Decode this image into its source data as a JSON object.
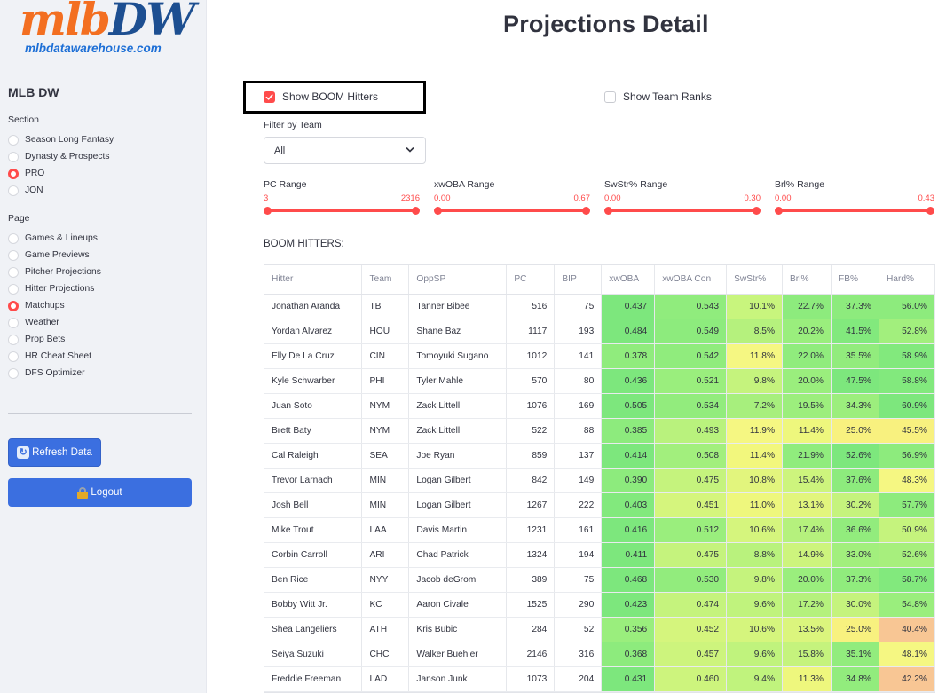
{
  "sidebar": {
    "logo_main_a": "mlb",
    "logo_main_b": "DW",
    "logo_sub": "mlbdatawarehouse.com",
    "title": "MLB DW",
    "section_label": "Section",
    "sections": [
      {
        "label": "Season Long Fantasy",
        "selected": false
      },
      {
        "label": "Dynasty & Prospects",
        "selected": false
      },
      {
        "label": "PRO",
        "selected": true
      },
      {
        "label": "JON",
        "selected": false
      }
    ],
    "page_label": "Page",
    "pages": [
      {
        "label": "Games & Lineups",
        "selected": false
      },
      {
        "label": "Game Previews",
        "selected": false
      },
      {
        "label": "Pitcher Projections",
        "selected": false
      },
      {
        "label": "Hitter Projections",
        "selected": false
      },
      {
        "label": "Matchups",
        "selected": true
      },
      {
        "label": "Weather",
        "selected": false
      },
      {
        "label": "Prop Bets",
        "selected": false
      },
      {
        "label": "HR Cheat Sheet",
        "selected": false
      },
      {
        "label": "DFS Optimizer",
        "selected": false
      }
    ],
    "refresh_label": "Refresh Data",
    "logout_label": "Logout"
  },
  "main": {
    "title": "Projections Detail",
    "show_boom_label": "Show BOOM Hitters",
    "show_boom_checked": true,
    "show_team_ranks_label": "Show Team Ranks",
    "show_team_ranks_checked": false,
    "filter_label": "Filter by Team",
    "filter_value": "All",
    "sliders": [
      {
        "label": "PC Range",
        "min": "3",
        "max": "2316"
      },
      {
        "label": "xwOBA Range",
        "min": "0.00",
        "max": "0.67"
      },
      {
        "label": "SwStr% Range",
        "min": "0.00",
        "max": "0.30"
      },
      {
        "label": "Brl% Range",
        "min": "0.00",
        "max": "0.43"
      }
    ],
    "table_title": "BOOM HITTERS:"
  },
  "table": {
    "columns": [
      "Hitter",
      "Team",
      "OppSP",
      "PC",
      "BIP",
      "xwOBA",
      "xwOBA Con",
      "SwStr%",
      "Brl%",
      "FB%",
      "Hard%"
    ],
    "rows": [
      {
        "cells": [
          "Jonathan Aranda",
          "TB",
          "Tanner Bibee",
          "516",
          "75",
          "0.437",
          "0.543",
          "10.1%",
          "22.7%",
          "37.3%",
          "56.0%"
        ],
        "colors": [
          "#7de77d",
          "#90ec7d",
          "#c8f57d",
          "#8deb7d",
          "#8deb7d",
          "#8deb7d"
        ]
      },
      {
        "cells": [
          "Yordan Alvarez",
          "HOU",
          "Shane Baz",
          "1117",
          "193",
          "0.484",
          "0.549",
          "8.5%",
          "20.2%",
          "41.5%",
          "52.8%"
        ],
        "colors": [
          "#7de77d",
          "#8deb7d",
          "#b5f17d",
          "#9aee7d",
          "#82e97d",
          "#a2ef7d"
        ]
      },
      {
        "cells": [
          "Elly De La Cruz",
          "CIN",
          "Tomoyuki Sugano",
          "1012",
          "141",
          "0.378",
          "0.542",
          "11.8%",
          "22.0%",
          "35.5%",
          "58.9%"
        ],
        "colors": [
          "#90ec7d",
          "#90ec7d",
          "#f5f782",
          "#90ec7d",
          "#92ec7d",
          "#82e97d"
        ]
      },
      {
        "cells": [
          "Kyle Schwarber",
          "PHI",
          "Tyler Mahle",
          "570",
          "80",
          "0.436",
          "0.521",
          "9.8%",
          "20.0%",
          "47.5%",
          "58.8%"
        ],
        "colors": [
          "#7de77d",
          "#9aee7d",
          "#c5f37d",
          "#9aee7d",
          "#7de77d",
          "#82e97d"
        ]
      },
      {
        "cells": [
          "Juan Soto",
          "NYM",
          "Zack Littell",
          "1076",
          "169",
          "0.505",
          "0.534",
          "7.2%",
          "19.5%",
          "34.3%",
          "60.9%"
        ],
        "colors": [
          "#7de77d",
          "#92ec7d",
          "#a7ef7d",
          "#9cee7d",
          "#9cee7d",
          "#7de77d"
        ]
      },
      {
        "cells": [
          "Brett Baty",
          "NYM",
          "Zack Littell",
          "522",
          "88",
          "0.385",
          "0.493",
          "11.9%",
          "11.4%",
          "25.0%",
          "45.5%"
        ],
        "colors": [
          "#8deb7d",
          "#b9f27d",
          "#f5f782",
          "#eef77d",
          "#f8f17f",
          "#f8f17f"
        ]
      },
      {
        "cells": [
          "Cal Raleigh",
          "SEA",
          "Joe Ryan",
          "859",
          "137",
          "0.414",
          "0.508",
          "11.4%",
          "21.9%",
          "52.6%",
          "56.9%"
        ],
        "colors": [
          "#7de77d",
          "#a2ef7d",
          "#f2f77d",
          "#90ec7d",
          "#7de77d",
          "#8deb7d"
        ]
      },
      {
        "cells": [
          "Trevor Larnach",
          "MIN",
          "Logan Gilbert",
          "842",
          "149",
          "0.390",
          "0.475",
          "10.8%",
          "15.4%",
          "37.6%",
          "48.3%"
        ],
        "colors": [
          "#8deb7d",
          "#c5f37d",
          "#e2f57d",
          "#cdf47d",
          "#8deb7d",
          "#f5f782"
        ]
      },
      {
        "cells": [
          "Josh Bell",
          "MIN",
          "Logan Gilbert",
          "1267",
          "222",
          "0.403",
          "0.451",
          "11.0%",
          "13.1%",
          "30.2%",
          "57.7%"
        ],
        "colors": [
          "#82e97d",
          "#d5f57d",
          "#eef77d",
          "#e2f57d",
          "#c5f37d",
          "#8deb7d"
        ]
      },
      {
        "cells": [
          "Mike Trout",
          "LAA",
          "Davis Martin",
          "1231",
          "161",
          "0.416",
          "0.512",
          "10.6%",
          "17.4%",
          "36.6%",
          "50.9%"
        ],
        "colors": [
          "#7de77d",
          "#9aee7d",
          "#d5f57d",
          "#b5f17d",
          "#92ec7d",
          "#c5f37d"
        ]
      },
      {
        "cells": [
          "Corbin Carroll",
          "ARI",
          "Chad Patrick",
          "1324",
          "194",
          "0.411",
          "0.475",
          "8.8%",
          "14.9%",
          "33.0%",
          "52.6%"
        ],
        "colors": [
          "#7de77d",
          "#c5f37d",
          "#b9f27d",
          "#cdf47d",
          "#a2ef7d",
          "#a7ef7d"
        ]
      },
      {
        "cells": [
          "Ben Rice",
          "NYY",
          "Jacob deGrom",
          "389",
          "75",
          "0.468",
          "0.530",
          "9.8%",
          "20.0%",
          "37.3%",
          "58.7%"
        ],
        "colors": [
          "#7de77d",
          "#92ec7d",
          "#c5f37d",
          "#9aee7d",
          "#90ec7d",
          "#82e97d"
        ]
      },
      {
        "cells": [
          "Bobby Witt Jr.",
          "KC",
          "Aaron Civale",
          "1525",
          "290",
          "0.423",
          "0.474",
          "9.6%",
          "17.2%",
          "30.0%",
          "54.8%"
        ],
        "colors": [
          "#7de77d",
          "#c5f37d",
          "#c0f37d",
          "#b5f17d",
          "#c5f37d",
          "#9aee7d"
        ]
      },
      {
        "cells": [
          "Shea Langeliers",
          "ATH",
          "Kris Bubic",
          "284",
          "52",
          "0.356",
          "0.452",
          "10.6%",
          "13.5%",
          "25.0%",
          "40.4%"
        ],
        "colors": [
          "#9aee7d",
          "#d5f57d",
          "#d5f57d",
          "#dbf57d",
          "#f8f17f",
          "#f8c694"
        ]
      },
      {
        "cells": [
          "Seiya Suzuki",
          "CHC",
          "Walker Buehler",
          "2146",
          "316",
          "0.368",
          "0.457",
          "9.6%",
          "15.8%",
          "35.1%",
          "48.1%"
        ],
        "colors": [
          "#8deb7d",
          "#cdf47d",
          "#c0f37d",
          "#c5f37d",
          "#92ec7d",
          "#f5f782"
        ]
      },
      {
        "cells": [
          "Freddie Freeman",
          "LAD",
          "Janson Junk",
          "1073",
          "204",
          "0.431",
          "0.460",
          "9.4%",
          "11.3%",
          "34.8%",
          "42.2%"
        ],
        "colors": [
          "#7de77d",
          "#cdf47d",
          "#c0f37d",
          "#eef77d",
          "#92ec7d",
          "#f8c694"
        ]
      },
      {
        "cells": [
          "",
          "",
          "",
          "",
          "",
          "",
          "",
          "",
          "",
          "",
          ""
        ],
        "colors": [
          "#8deb7d",
          "#c5f37d",
          "#c5f37d",
          "#c5f37d",
          "#9aee7d",
          "#c5f37d"
        ]
      }
    ]
  }
}
